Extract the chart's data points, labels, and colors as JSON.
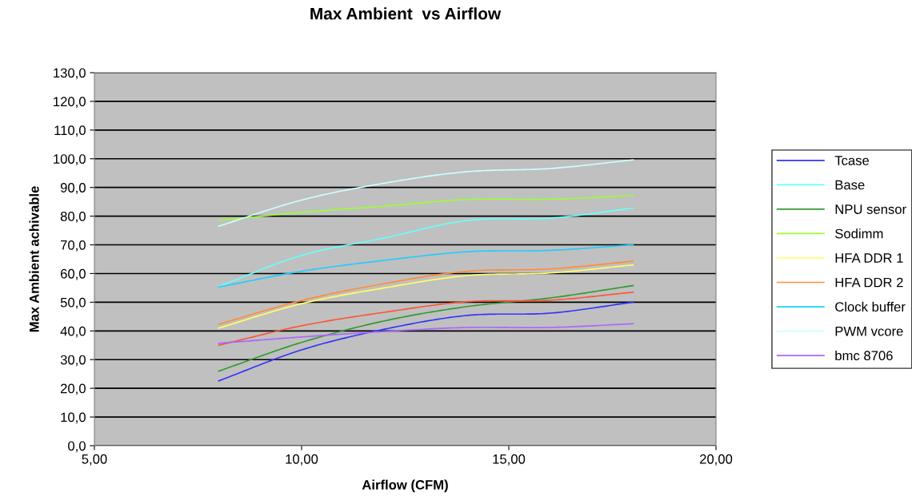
{
  "chart_data": {
    "type": "line",
    "title": "Max Ambient  vs Airflow",
    "xlabel": "Airflow (CFM)",
    "ylabel": "Max Ambient achivable",
    "x": [
      8,
      10,
      12,
      14,
      16,
      18
    ],
    "series": [
      {
        "name": "Tcase",
        "color": "#3333ff",
        "values": [
          22.6,
          33.4,
          40.6,
          45.4,
          46.2,
          50.0
        ]
      },
      {
        "name": "Base",
        "color": "#66ffff",
        "values": [
          55.5,
          66.3,
          72.4,
          78.5,
          79.3,
          82.8
        ]
      },
      {
        "name": "NPU sensor",
        "color": "#339933",
        "values": [
          26.0,
          36.0,
          43.5,
          48.5,
          51.5,
          55.8
        ]
      },
      {
        "name": "Sodimm",
        "color": "#99ff33",
        "values": [
          78.5,
          81.3,
          83.5,
          85.8,
          85.9,
          87.2
        ]
      },
      {
        "name": "HFA DDR 1",
        "color": "#ffff66",
        "values": [
          41.0,
          49.5,
          55.0,
          59.3,
          60.2,
          63.0
        ]
      },
      {
        "name": "HFA DDR 2",
        "color": "#ff8c3a",
        "values": [
          42.3,
          50.6,
          56.5,
          60.8,
          61.6,
          64.3
        ]
      },
      {
        "color": "#ff5533",
        "values": [
          35.0,
          41.8,
          46.5,
          50.2,
          50.7,
          53.5
        ]
      },
      {
        "name": "Clock buffer",
        "color": "#22ccff",
        "values": [
          55.3,
          60.8,
          64.6,
          67.6,
          68.1,
          70.0
        ]
      },
      {
        "name": "PWM vcore",
        "color": "#ccffff",
        "values": [
          76.5,
          85.6,
          91.5,
          95.5,
          96.6,
          99.6
        ]
      },
      {
        "name": "bmc 8706",
        "color": "#aa66ff",
        "values": [
          35.7,
          37.9,
          39.8,
          41.2,
          41.2,
          42.5
        ]
      }
    ],
    "xlim": [
      5,
      20
    ],
    "xticks": [
      {
        "value": 5,
        "label": "5,00"
      },
      {
        "value": 10,
        "label": "10,00"
      },
      {
        "value": 15,
        "label": "15,00"
      },
      {
        "value": 20,
        "label": "20,00"
      }
    ],
    "ylim": [
      0,
      130
    ],
    "yticks": [
      {
        "value": 0,
        "label": "0,0"
      },
      {
        "value": 10,
        "label": "10,0"
      },
      {
        "value": 20,
        "label": "20,0"
      },
      {
        "value": 30,
        "label": "30,0"
      },
      {
        "value": 40,
        "label": "40,0"
      },
      {
        "value": 50,
        "label": "50,0"
      },
      {
        "value": 60,
        "label": "60,0"
      },
      {
        "value": 70,
        "label": "70,0"
      },
      {
        "value": 80,
        "label": "80,0"
      },
      {
        "value": 90,
        "label": "90,0"
      },
      {
        "value": 100,
        "label": "100,0"
      },
      {
        "value": 110,
        "label": "110,0"
      },
      {
        "value": 120,
        "label": "120,0"
      },
      {
        "value": 130,
        "label": "130,0"
      }
    ],
    "grid": "y",
    "legend": "right",
    "marker": "none",
    "line_style": "solid"
  }
}
